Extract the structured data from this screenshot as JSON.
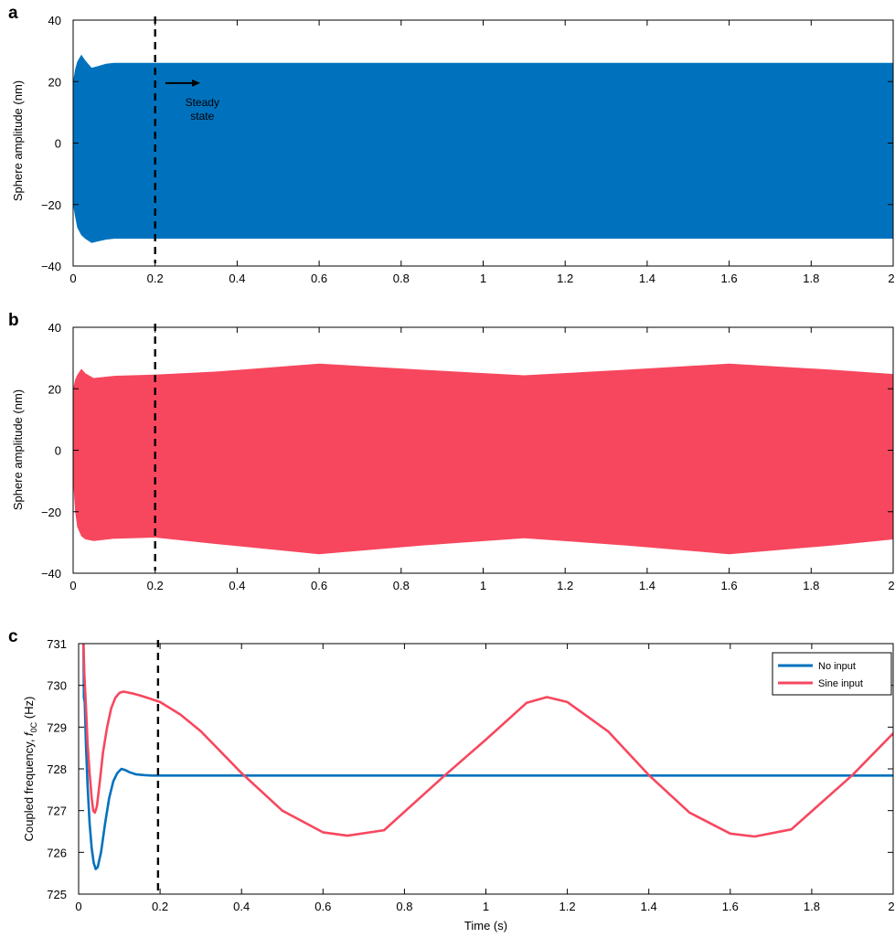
{
  "colors": {
    "no_input": "#0072bd",
    "sine_input": "#f7475e",
    "axis": "#000000",
    "steady_line": "#000000"
  },
  "chart_data": [
    {
      "panel": "a",
      "type": "area",
      "xlabel": "",
      "ylabel": "Sphere amplitude (nm)",
      "xlim": [
        0,
        2
      ],
      "ylim": [
        -40,
        40
      ],
      "xticks": [
        "0",
        "0.2",
        "0.4",
        "0.6",
        "0.8",
        "1",
        "1.2",
        "1.4",
        "1.6",
        "1.8",
        "2"
      ],
      "yticks": [
        "-40",
        "-20",
        "0",
        "20",
        "40"
      ],
      "steady_state_t": 0.2,
      "annotation": [
        "Steady",
        "state"
      ],
      "series": [
        {
          "color": "#0072bd",
          "x": [
            0,
            0.005,
            0.01,
            0.02,
            0.03,
            0.045,
            0.06,
            0.08,
            0.1,
            0.15,
            0.2,
            2.0
          ],
          "upper": [
            20,
            24,
            26.5,
            28.8,
            26.8,
            24.5,
            25.0,
            25.8,
            26.1,
            26.1,
            26.1,
            26.1
          ],
          "lower": [
            -20,
            -24,
            -27.5,
            -30.0,
            -31.2,
            -32.5,
            -32.0,
            -31.4,
            -31.1,
            -31.1,
            -31.1,
            -31.1
          ]
        }
      ]
    },
    {
      "panel": "b",
      "type": "area",
      "xlabel": "",
      "ylabel": "Sphere amplitude (nm)",
      "xlim": [
        0,
        2
      ],
      "ylim": [
        -40,
        40
      ],
      "xticks": [
        "0",
        "0.2",
        "0.4",
        "0.6",
        "0.8",
        "1",
        "1.2",
        "1.4",
        "1.6",
        "1.8",
        "2"
      ],
      "yticks": [
        "-40",
        "-20",
        "0",
        "20",
        "40"
      ],
      "steady_state_t": 0.2,
      "series": [
        {
          "color": "#f7475e",
          "x": [
            0,
            0.005,
            0.01,
            0.02,
            0.03,
            0.05,
            0.1,
            0.2,
            0.35,
            0.6,
            0.85,
            1.1,
            1.35,
            1.6,
            1.85,
            2.0
          ],
          "upper": [
            20,
            23,
            24.5,
            26.5,
            25,
            23.5,
            24.2,
            24.6,
            25.6,
            28.2,
            26.2,
            24.4,
            26.2,
            28.2,
            26.2,
            24.8
          ],
          "lower": [
            -10,
            -20,
            -25,
            -28,
            -29,
            -29.5,
            -28.8,
            -28.4,
            -30.5,
            -33.8,
            -31.0,
            -28.6,
            -31.0,
            -33.8,
            -31.0,
            -29.0
          ]
        }
      ]
    },
    {
      "panel": "c",
      "type": "line",
      "xlabel": "Time (s)",
      "ylabel_main": "Coupled frequency, ",
      "ylabel_italic": "f",
      "ylabel_sub": "0C",
      "ylabel_unit": " (Hz)",
      "xlim": [
        0,
        2
      ],
      "ylim": [
        725,
        731
      ],
      "xticks": [
        "0",
        "0.2",
        "0.4",
        "0.6",
        "0.8",
        "1",
        "1.2",
        "1.4",
        "1.6",
        "1.8",
        "2"
      ],
      "yticks": [
        "725",
        "726",
        "727",
        "728",
        "729",
        "730",
        "731"
      ],
      "steady_state_t": 0.195,
      "legend_position": "top-right",
      "series": [
        {
          "name": "No input",
          "color": "#0072bd",
          "x": [
            0.012,
            0.013,
            0.015,
            0.018,
            0.022,
            0.027,
            0.032,
            0.037,
            0.042,
            0.047,
            0.055,
            0.065,
            0.075,
            0.085,
            0.095,
            0.105,
            0.115,
            0.125,
            0.14,
            0.16,
            0.18,
            0.2,
            0.25,
            2.0
          ],
          "y": [
            731,
            729.7,
            729.6,
            728.6,
            727.6,
            726.7,
            726.1,
            725.75,
            725.6,
            725.65,
            726.0,
            726.7,
            727.3,
            727.7,
            727.9,
            728.0,
            727.97,
            727.92,
            727.87,
            727.85,
            727.84,
            727.84,
            727.84,
            727.84
          ]
        },
        {
          "name": "Sine input",
          "color": "#f7475e",
          "x": [
            0.012,
            0.014,
            0.018,
            0.022,
            0.027,
            0.032,
            0.036,
            0.04,
            0.045,
            0.052,
            0.06,
            0.07,
            0.08,
            0.09,
            0.1,
            0.11,
            0.12,
            0.135,
            0.15,
            0.17,
            0.2,
            0.25,
            0.3,
            0.4,
            0.5,
            0.6,
            0.66,
            0.75,
            0.9,
            1.0,
            1.1,
            1.15,
            1.2,
            1.3,
            1.4,
            1.5,
            1.6,
            1.66,
            1.75,
            1.9,
            2.0
          ],
          "y": [
            731,
            730.3,
            729.5,
            728.6,
            727.9,
            727.3,
            727.0,
            726.95,
            727.1,
            727.7,
            728.4,
            729.0,
            729.45,
            729.7,
            729.82,
            729.85,
            729.83,
            729.8,
            729.76,
            729.7,
            729.6,
            729.3,
            728.9,
            727.9,
            727.0,
            726.48,
            726.4,
            726.53,
            727.85,
            728.7,
            729.58,
            729.72,
            729.6,
            728.9,
            727.85,
            726.95,
            726.45,
            726.38,
            726.55,
            727.85,
            728.85
          ]
        }
      ]
    }
  ]
}
